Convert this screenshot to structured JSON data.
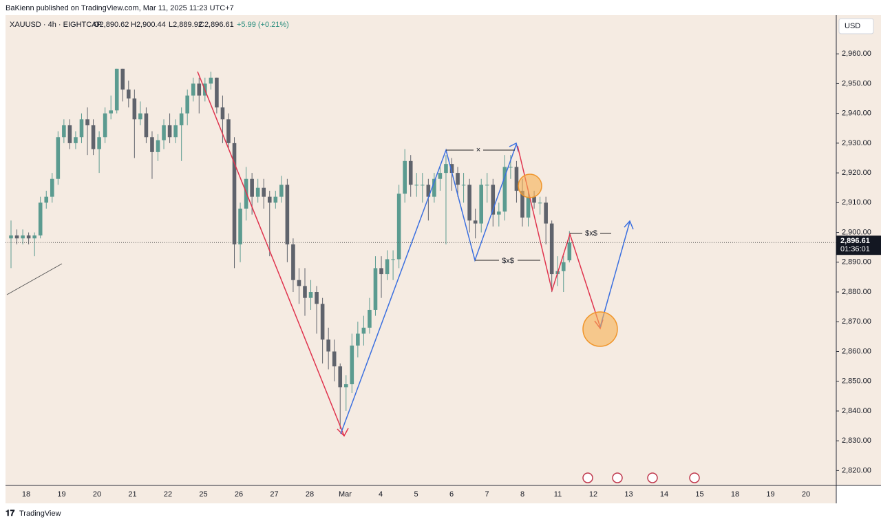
{
  "header": {
    "published": "BaKienn published on TradingView.com, Mar 11, 2025 11:23 UTC+7"
  },
  "footer": {
    "brand": "TradingView"
  },
  "chart_data": {
    "type": "candlestick",
    "legend": {
      "symbol": "XAUUSD · 4h · EIGHTCAP",
      "ohlc": [
        "O2,890.62",
        "H2,900.44",
        "L2,889.92",
        "C2,896.61"
      ],
      "change": "+5.99 (+0.21%)"
    },
    "currency": "USD",
    "last_price_label": "2,896.61",
    "countdown": "01:36:01",
    "annotations": [
      "×",
      "$x$",
      "$x$"
    ],
    "categories": [
      "18",
      "19",
      "20",
      "21",
      "22",
      "25",
      "26",
      "27",
      "28",
      "Mar",
      "4",
      "5",
      "6",
      "7",
      "8",
      "11",
      "12",
      "13",
      "14",
      "15",
      "18",
      "19",
      "20"
    ],
    "up_color": "#5b9b90",
    "down_color": "#5f636c",
    "ylim": [
      2815,
      2973
    ],
    "yticks": [
      {
        "value": 2820,
        "label": "2,820.00"
      },
      {
        "value": 2830,
        "label": "2,830.00"
      },
      {
        "value": 2840,
        "label": "2,840.00"
      },
      {
        "value": 2850,
        "label": "2,850.00"
      },
      {
        "value": 2860,
        "label": "2,860.00"
      },
      {
        "value": 2870,
        "label": "2,870.00"
      },
      {
        "value": 2880,
        "label": "2,880.00"
      },
      {
        "value": 2890,
        "label": "2,890.00"
      },
      {
        "value": 2900,
        "label": "2,900.00"
      },
      {
        "value": 2910,
        "label": "2,910.00"
      },
      {
        "value": 2920,
        "label": "2,920.00"
      },
      {
        "value": 2930,
        "label": "2,930.00"
      },
      {
        "value": 2940,
        "label": "2,940.00"
      },
      {
        "value": 2950,
        "label": "2,950.00"
      },
      {
        "value": 2960,
        "label": "2,960.00"
      }
    ],
    "candles": [
      [
        2898,
        2904,
        2888,
        2899
      ],
      [
        2899,
        2901,
        2896,
        2898
      ],
      [
        2898,
        2901,
        2896,
        2899
      ],
      [
        2899,
        2900,
        2896,
        2898
      ],
      [
        2898,
        2900,
        2892,
        2899
      ],
      [
        2899,
        2912,
        2898,
        2910
      ],
      [
        2910,
        2914,
        2908,
        2912
      ],
      [
        2912,
        2920,
        2910,
        2918
      ],
      [
        2918,
        2934,
        2916,
        2932
      ],
      [
        2932,
        2938,
        2930,
        2936
      ],
      [
        2936,
        2938,
        2928,
        2930
      ],
      [
        2930,
        2934,
        2928,
        2932
      ],
      [
        2932,
        2940,
        2930,
        2938
      ],
      [
        2938,
        2942,
        2926,
        2936
      ],
      [
        2936,
        2938,
        2926,
        2928
      ],
      [
        2928,
        2934,
        2920,
        2932
      ],
      [
        2932,
        2942,
        2930,
        2940
      ],
      [
        2940,
        2946,
        2938,
        2941
      ],
      [
        2941,
        2955,
        2940,
        2955
      ],
      [
        2955,
        2955,
        2944,
        2948
      ],
      [
        2948,
        2951,
        2942,
        2945
      ],
      [
        2945,
        2948,
        2925,
        2938
      ],
      [
        2938,
        2944,
        2936,
        2940
      ],
      [
        2940,
        2942,
        2930,
        2932
      ],
      [
        2932,
        2934,
        2918,
        2927
      ],
      [
        2927,
        2933,
        2924,
        2931
      ],
      [
        2931,
        2938,
        2928,
        2936
      ],
      [
        2936,
        2940,
        2930,
        2932
      ],
      [
        2932,
        2938,
        2930,
        2936
      ],
      [
        2936,
        2942,
        2924,
        2940
      ],
      [
        2940,
        2948,
        2936,
        2946
      ],
      [
        2946,
        2952,
        2944,
        2950
      ],
      [
        2950,
        2952,
        2940,
        2946
      ],
      [
        2946,
        2952,
        2944,
        2950
      ],
      [
        2950,
        2954,
        2948,
        2952
      ],
      [
        2952,
        2952,
        2940,
        2942
      ],
      [
        2942,
        2946,
        2930,
        2938
      ],
      [
        2938,
        2940,
        2928,
        2930
      ],
      [
        2930,
        2932,
        2888,
        2896
      ],
      [
        2896,
        2910,
        2890,
        2908
      ],
      [
        2908,
        2922,
        2904,
        2918
      ],
      [
        2918,
        2920,
        2906,
        2912
      ],
      [
        2912,
        2918,
        2910,
        2915
      ],
      [
        2915,
        2918,
        2908,
        2912
      ],
      [
        2912,
        2914,
        2892,
        2910
      ],
      [
        2910,
        2914,
        2908,
        2912
      ],
      [
        2912,
        2919,
        2910,
        2916
      ],
      [
        2916,
        2918,
        2890,
        2896
      ],
      [
        2896,
        2898,
        2880,
        2884
      ],
      [
        2884,
        2888,
        2876,
        2882
      ],
      [
        2882,
        2888,
        2872,
        2878
      ],
      [
        2878,
        2884,
        2874,
        2880
      ],
      [
        2880,
        2882,
        2866,
        2876
      ],
      [
        2876,
        2878,
        2856,
        2864
      ],
      [
        2864,
        2868,
        2854,
        2860
      ],
      [
        2860,
        2864,
        2850,
        2855
      ],
      [
        2855,
        2856,
        2834,
        2848
      ],
      [
        2848,
        2852,
        2840,
        2849
      ],
      [
        2849,
        2866,
        2846,
        2862
      ],
      [
        2862,
        2870,
        2858,
        2866
      ],
      [
        2866,
        2872,
        2862,
        2868
      ],
      [
        2868,
        2878,
        2866,
        2874
      ],
      [
        2874,
        2892,
        2872,
        2888
      ],
      [
        2888,
        2892,
        2878,
        2886
      ],
      [
        2886,
        2894,
        2884,
        2891
      ],
      [
        2891,
        2894,
        2884,
        2891
      ],
      [
        2891,
        2916,
        2888,
        2913
      ],
      [
        2913,
        2928,
        2910,
        2924
      ],
      [
        2924,
        2926,
        2912,
        2916
      ],
      [
        2916,
        2920,
        2912,
        2916
      ],
      [
        2916,
        2920,
        2910,
        2916
      ],
      [
        2916,
        2918,
        2904,
        2912
      ],
      [
        2912,
        2920,
        2910,
        2918
      ],
      [
        2918,
        2922,
        2914,
        2920
      ],
      [
        2920,
        2926,
        2896,
        2923
      ],
      [
        2923,
        2925,
        2914,
        2920
      ],
      [
        2920,
        2922,
        2912,
        2916
      ],
      [
        2916,
        2920,
        2910,
        2916
      ],
      [
        2916,
        2918,
        2900,
        2904
      ],
      [
        2904,
        2908,
        2898,
        2903
      ],
      [
        2903,
        2918,
        2900,
        2916
      ],
      [
        2916,
        2920,
        2910,
        2916
      ],
      [
        2916,
        2918,
        2902,
        2906
      ],
      [
        2906,
        2910,
        2902,
        2907
      ],
      [
        2907,
        2926,
        2904,
        2922
      ],
      [
        2922,
        2926,
        2918,
        2922
      ],
      [
        2922,
        2924,
        2910,
        2914
      ],
      [
        2914,
        2918,
        2902,
        2905
      ],
      [
        2905,
        2914,
        2902,
        2912
      ],
      [
        2912,
        2914,
        2908,
        2910
      ],
      [
        2910,
        2912,
        2906,
        2910
      ],
      [
        2910,
        2912,
        2896,
        2903
      ],
      [
        2903,
        2904,
        2880,
        2886
      ],
      [
        2886,
        2892,
        2882,
        2887
      ],
      [
        2887,
        2892,
        2880,
        2890
      ],
      [
        2890.62,
        2900.44,
        2889.92,
        2896.61
      ]
    ]
  }
}
